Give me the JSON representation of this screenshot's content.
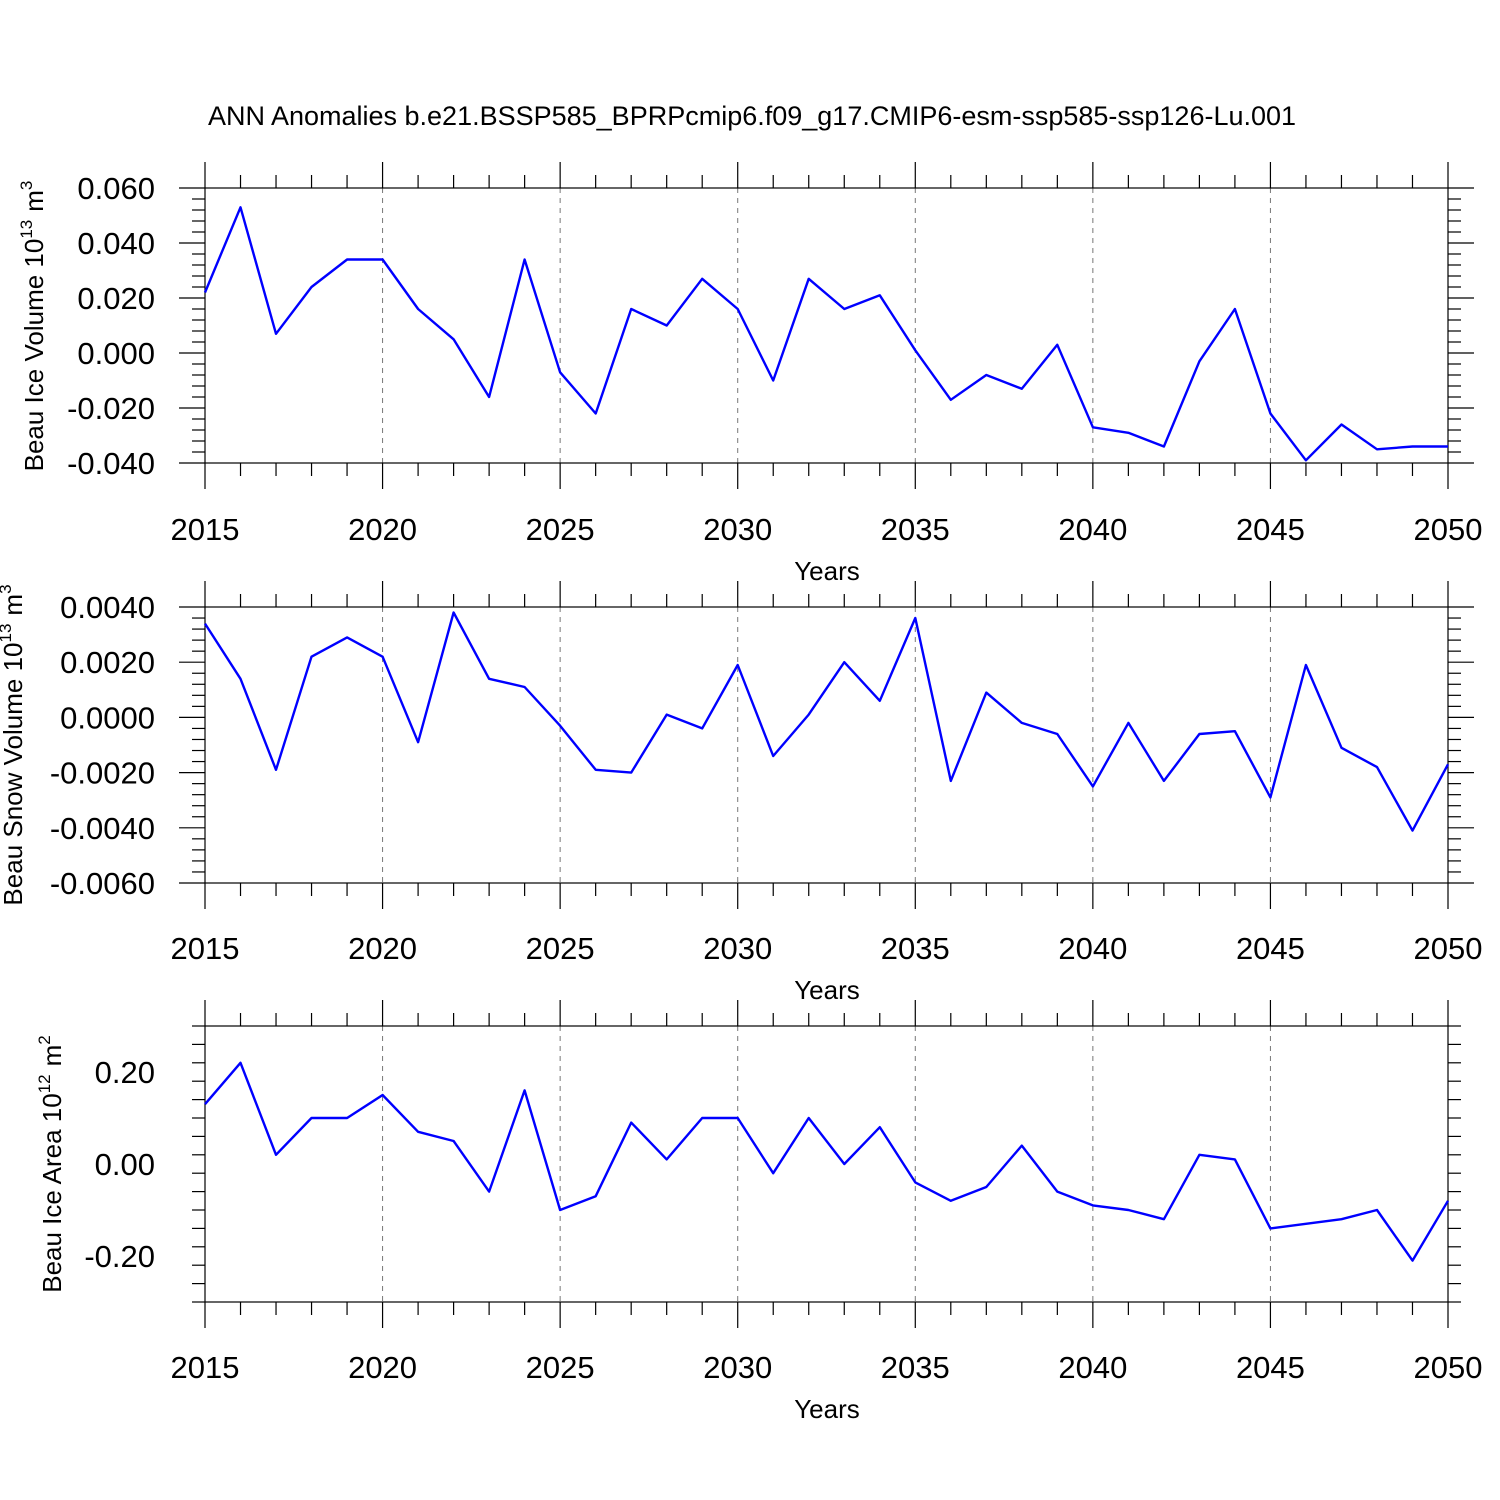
{
  "title": "ANN Anomalies b.e21.BSSP585_BPRPcmip6.f09_g17.CMIP6-esm-ssp585-ssp126-Lu.001",
  "colors": {
    "series": "#0000ff",
    "grid": "#777777",
    "axis": "#000000"
  },
  "chart_data": [
    {
      "type": "line",
      "xlabel": "Years",
      "ylabel_main": "Beau Ice Volume 10",
      "ylabel_exp": "13",
      "ylabel_unit": "m",
      "ylabel_unit_exp": "3",
      "xlim": [
        2015,
        2050
      ],
      "ylim": [
        -0.04,
        0.06
      ],
      "xticks": [
        2015,
        2020,
        2025,
        2030,
        2035,
        2040,
        2045,
        2050
      ],
      "xtick_labels": [
        "2015",
        "2020",
        "2025",
        "2030",
        "2035",
        "2040",
        "2045",
        "2050"
      ],
      "yticks": [
        0.06,
        0.04,
        0.02,
        0.0,
        -0.02,
        -0.04
      ],
      "ytick_labels": [
        "0.060",
        "0.040",
        "0.020",
        "0.000",
        "-0.020",
        "-0.040"
      ],
      "grid": "vertical dashed at major x ticks",
      "x": [
        2015,
        2016,
        2017,
        2018,
        2019,
        2020,
        2021,
        2022,
        2023,
        2024,
        2025,
        2026,
        2027,
        2028,
        2029,
        2030,
        2031,
        2032,
        2033,
        2034,
        2035,
        2036,
        2037,
        2038,
        2039,
        2040,
        2041,
        2042,
        2043,
        2044,
        2045,
        2046,
        2047,
        2048,
        2049,
        2050
      ],
      "values": [
        0.022,
        0.053,
        0.007,
        0.024,
        0.034,
        0.034,
        0.016,
        0.005,
        -0.016,
        0.034,
        -0.007,
        -0.022,
        0.016,
        0.01,
        0.027,
        0.016,
        -0.01,
        0.027,
        0.016,
        0.021,
        0.001,
        -0.017,
        -0.008,
        -0.013,
        0.003,
        -0.027,
        -0.029,
        -0.034,
        -0.003,
        0.016,
        -0.022,
        -0.039,
        -0.026,
        -0.035,
        -0.034,
        -0.034
      ]
    },
    {
      "type": "line",
      "xlabel": "Years",
      "ylabel_main": "Beau Snow Volume 10",
      "ylabel_exp": "13",
      "ylabel_unit": "m",
      "ylabel_unit_exp": "3",
      "xlim": [
        2015,
        2050
      ],
      "ylim": [
        -0.006,
        0.004
      ],
      "xticks": [
        2015,
        2020,
        2025,
        2030,
        2035,
        2040,
        2045,
        2050
      ],
      "xtick_labels": [
        "2015",
        "2020",
        "2025",
        "2030",
        "2035",
        "2040",
        "2045",
        "2050"
      ],
      "yticks": [
        0.004,
        0.002,
        0.0,
        -0.002,
        -0.004,
        -0.006
      ],
      "ytick_labels": [
        "0.0040",
        "0.0020",
        "0.0000",
        "-0.0020",
        "-0.0040",
        "-0.0060"
      ],
      "grid": "vertical dashed at major x ticks",
      "x": [
        2015,
        2016,
        2017,
        2018,
        2019,
        2020,
        2021,
        2022,
        2023,
        2024,
        2025,
        2026,
        2027,
        2028,
        2029,
        2030,
        2031,
        2032,
        2033,
        2034,
        2035,
        2036,
        2037,
        2038,
        2039,
        2040,
        2041,
        2042,
        2043,
        2044,
        2045,
        2046,
        2047,
        2048,
        2049,
        2050
      ],
      "values": [
        0.0034,
        0.0014,
        -0.0019,
        0.0022,
        0.0029,
        0.0022,
        -0.0009,
        0.0038,
        0.0014,
        0.0011,
        -0.0003,
        -0.0019,
        -0.002,
        0.0001,
        -0.0004,
        0.0019,
        -0.0014,
        0.0001,
        0.002,
        0.0006,
        0.0036,
        -0.0023,
        0.0009,
        -0.0002,
        -0.0006,
        -0.0025,
        -0.0002,
        -0.0023,
        -0.0006,
        -0.0005,
        -0.0029,
        0.0019,
        -0.0011,
        -0.0018,
        -0.0041,
        -0.0017
      ]
    },
    {
      "type": "line",
      "xlabel": "Years",
      "ylabel_main": "Beau Ice Area 10",
      "ylabel_exp": "12",
      "ylabel_unit": "m",
      "ylabel_unit_exp": "2",
      "xlim": [
        2015,
        2050
      ],
      "ylim": [
        -0.3,
        0.3
      ],
      "xticks": [
        2015,
        2020,
        2025,
        2030,
        2035,
        2040,
        2045,
        2050
      ],
      "xtick_labels": [
        "2015",
        "2020",
        "2025",
        "2030",
        "2035",
        "2040",
        "2045",
        "2050"
      ],
      "yticks": [
        0.2,
        0.0,
        -0.2
      ],
      "ytick_labels": [
        "0.20",
        "0.00",
        "-0.20"
      ],
      "grid": "vertical dashed at major x ticks",
      "x": [
        2015,
        2016,
        2017,
        2018,
        2019,
        2020,
        2021,
        2022,
        2023,
        2024,
        2025,
        2026,
        2027,
        2028,
        2029,
        2030,
        2031,
        2032,
        2033,
        2034,
        2035,
        2036,
        2037,
        2038,
        2039,
        2040,
        2041,
        2042,
        2043,
        2044,
        2045,
        2046,
        2047,
        2048,
        2049,
        2050
      ],
      "values": [
        0.13,
        0.22,
        0.02,
        0.1,
        0.1,
        0.15,
        0.07,
        0.05,
        -0.06,
        0.16,
        -0.1,
        -0.07,
        0.09,
        0.01,
        0.1,
        0.1,
        -0.02,
        0.1,
        0.0,
        0.08,
        -0.04,
        -0.08,
        -0.05,
        0.04,
        -0.06,
        -0.09,
        -0.1,
        -0.12,
        0.02,
        0.01,
        -0.14,
        -0.13,
        -0.12,
        -0.1,
        -0.21,
        -0.08
      ]
    }
  ]
}
